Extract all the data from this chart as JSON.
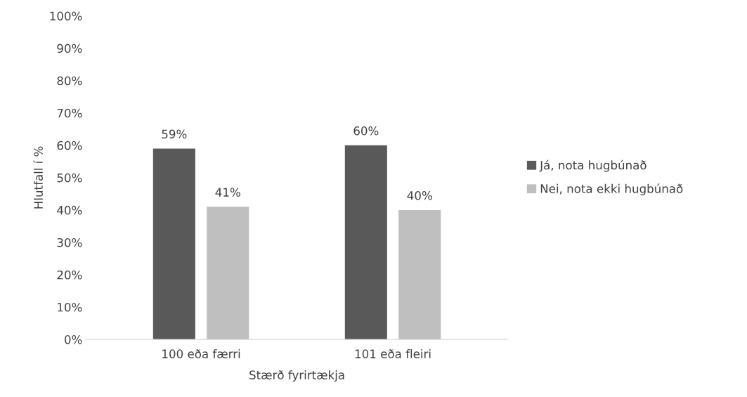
{
  "chart_data": {
    "type": "bar",
    "xlabel": "Stærð fyrirtækja",
    "ylabel": "Hlutfall í %",
    "categories": [
      "100 eða færri",
      "101 eða fleiri"
    ],
    "series": [
      {
        "name": "Já, nota hugbúnað",
        "color": "#595959",
        "values": [
          59,
          60
        ],
        "value_labels": [
          "59%",
          "60%"
        ]
      },
      {
        "name": "Nei, nota ekki hugbúnað",
        "color": "#bfbfbf",
        "values": [
          41,
          40
        ],
        "value_labels": [
          "41%",
          "40%"
        ]
      }
    ],
    "ylim": [
      0,
      100
    ],
    "yticks": [
      {
        "value": 0,
        "label": "0%"
      },
      {
        "value": 10,
        "label": "10%"
      },
      {
        "value": 20,
        "label": "20%"
      },
      {
        "value": 30,
        "label": "30%"
      },
      {
        "value": 40,
        "label": "40%"
      },
      {
        "value": 50,
        "label": "50%"
      },
      {
        "value": 60,
        "label": "60%"
      },
      {
        "value": 70,
        "label": "70%"
      },
      {
        "value": 80,
        "label": "80%"
      },
      {
        "value": 90,
        "label": "90%"
      },
      {
        "value": 100,
        "label": "100%"
      }
    ],
    "grid": false,
    "legend": "right"
  }
}
